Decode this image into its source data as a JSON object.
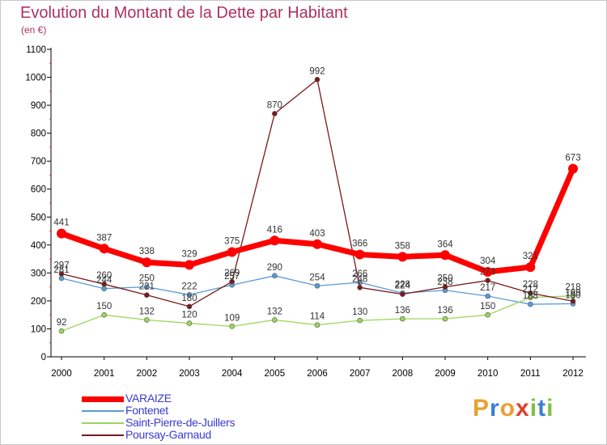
{
  "title": "Evolution du Montant de la Dette par Habitant",
  "subtitle": "(en €)",
  "brand": {
    "text": "Proxiti",
    "colors": [
      "#e8a030",
      "#3a7fd0",
      "#e8a030",
      "#e04030",
      "#80c040",
      "#3a7fd0",
      "#80c040"
    ]
  },
  "chart_data": {
    "type": "line",
    "x": [
      "2000",
      "2001",
      "2002",
      "2003",
      "2004",
      "2005",
      "2006",
      "2007",
      "2008",
      "2009",
      "2010",
      "2011",
      "2012"
    ],
    "ylim": [
      0,
      1100
    ],
    "yticks": [
      0,
      100,
      200,
      300,
      400,
      500,
      600,
      700,
      800,
      900,
      1000,
      1100
    ],
    "grid": false,
    "legend_position": "bottom-left",
    "series": [
      {
        "name": "VARAIZE",
        "color": "#ff0000",
        "width": 7,
        "values": [
          441,
          387,
          338,
          329,
          375,
          416,
          403,
          366,
          358,
          364,
          304,
          321,
          673
        ],
        "labels": [
          "441",
          "387",
          "338",
          "329",
          "375",
          "416",
          "403",
          "366",
          "358",
          "364",
          "304",
          "321",
          "673"
        ]
      },
      {
        "name": "Fontenet",
        "color": "#5b9bd5",
        "width": 1.3,
        "values": [
          281,
          244,
          250,
          222,
          257,
          290,
          254,
          266,
          228,
          238,
          217,
          188,
          190
        ],
        "labels": [
          "281",
          "244",
          "250",
          "222",
          "257",
          "290",
          "254",
          "266",
          "228",
          "238",
          "217",
          "188",
          "190"
        ]
      },
      {
        "name": "Saint-Pierre-de-Juillers",
        "color": "#9bd65b",
        "width": 1.3,
        "values": [
          92,
          150,
          132,
          120,
          109,
          132,
          114,
          130,
          136,
          136,
          150,
          212,
          218
        ],
        "labels": [
          "92",
          "150",
          "132",
          "120",
          "109",
          "132",
          "114",
          "130",
          "136",
          "136",
          "150",
          "212",
          "218"
        ]
      },
      {
        "name": "Poursay-Garnaud",
        "color": "#7a1a1a",
        "width": 1.3,
        "values": [
          297,
          260,
          221,
          180,
          269,
          870,
          992,
          248,
          224,
          250,
          273,
          228,
          199
        ],
        "labels": [
          "297",
          "260",
          "221",
          "180",
          "269",
          "870",
          "992",
          "248",
          "224",
          "250",
          "273",
          "228",
          "199"
        ]
      }
    ]
  }
}
